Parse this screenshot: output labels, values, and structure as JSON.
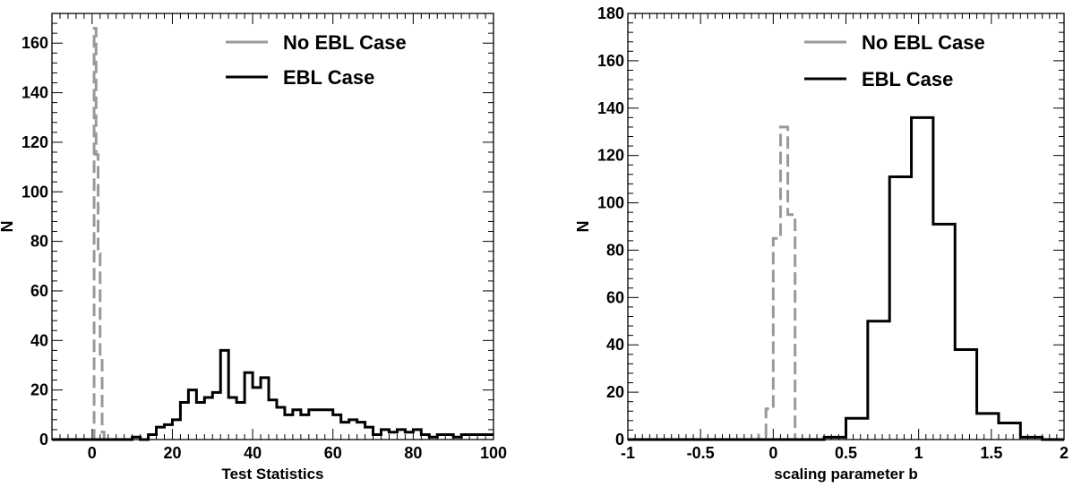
{
  "chart_data": [
    {
      "type": "histogram",
      "xlabel": "Test Statistics",
      "ylabel": "N",
      "xlim": [
        -10,
        100
      ],
      "ylim": [
        0,
        172
      ],
      "xticks": [
        0,
        20,
        40,
        60,
        80,
        100
      ],
      "yticks": [
        0,
        20,
        40,
        60,
        80,
        100,
        120,
        140,
        160
      ],
      "legend_position": "top-right",
      "grid": false,
      "series": [
        {
          "name": "No EBL Case",
          "color": "#999999",
          "style": "dashed",
          "x": [
            0,
            0.5,
            1,
            1.5,
            2,
            2.5,
            3
          ],
          "y": [
            0,
            166,
            115,
            75,
            32,
            3,
            0
          ]
        },
        {
          "name": "EBL Case",
          "color": "#000000",
          "style": "solid",
          "bin_width": 2,
          "x": [
            -10,
            -8,
            -6,
            -4,
            -2,
            0,
            2,
            4,
            6,
            8,
            10,
            12,
            14,
            16,
            18,
            20,
            22,
            24,
            26,
            28,
            30,
            32,
            34,
            36,
            38,
            40,
            42,
            44,
            46,
            48,
            50,
            52,
            54,
            56,
            58,
            60,
            62,
            64,
            66,
            68,
            70,
            72,
            74,
            76,
            78,
            80,
            82,
            84,
            86,
            88,
            90,
            92,
            94,
            96,
            98
          ],
          "y": [
            0,
            0,
            0,
            0,
            0,
            0,
            0,
            0,
            0,
            0,
            1,
            0,
            2,
            5,
            6,
            8,
            15,
            20,
            15,
            17,
            19,
            36,
            17,
            15,
            27,
            21,
            25,
            16,
            13,
            10,
            12,
            10,
            12,
            12,
            12,
            10,
            7,
            8,
            7,
            5,
            2,
            4,
            3,
            4,
            3,
            4,
            2,
            1,
            2,
            2,
            1,
            2,
            2,
            2,
            2
          ]
        }
      ]
    },
    {
      "type": "histogram",
      "xlabel": "scaling parameter b",
      "ylabel": "N",
      "xlim": [
        -1,
        2
      ],
      "ylim": [
        0,
        180
      ],
      "xticks": [
        -1,
        -0.5,
        0,
        0.5,
        1,
        1.5,
        2
      ],
      "yticks": [
        0,
        20,
        40,
        60,
        80,
        100,
        120,
        140,
        160,
        180
      ],
      "legend_position": "top-right",
      "grid": false,
      "series": [
        {
          "name": "No EBL Case",
          "color": "#999999",
          "style": "dashed",
          "x": [
            -0.15,
            -0.1,
            -0.05,
            0,
            0.05,
            0.1,
            0.15
          ],
          "y": [
            0,
            2,
            13,
            85,
            132,
            95,
            0
          ]
        },
        {
          "name": "EBL Case",
          "color": "#000000",
          "style": "solid",
          "bin_width": 0.15,
          "x": [
            -1,
            -0.85,
            -0.7,
            -0.55,
            -0.4,
            -0.25,
            -0.1,
            0.05,
            0.2,
            0.35,
            0.5,
            0.65,
            0.8,
            0.95,
            1.1,
            1.25,
            1.4,
            1.55,
            1.7,
            1.85
          ],
          "y": [
            0,
            0,
            0,
            0,
            0,
            0,
            0,
            0,
            0,
            1,
            9,
            50,
            111,
            136,
            91,
            38,
            11,
            7,
            1,
            0
          ]
        }
      ]
    }
  ]
}
